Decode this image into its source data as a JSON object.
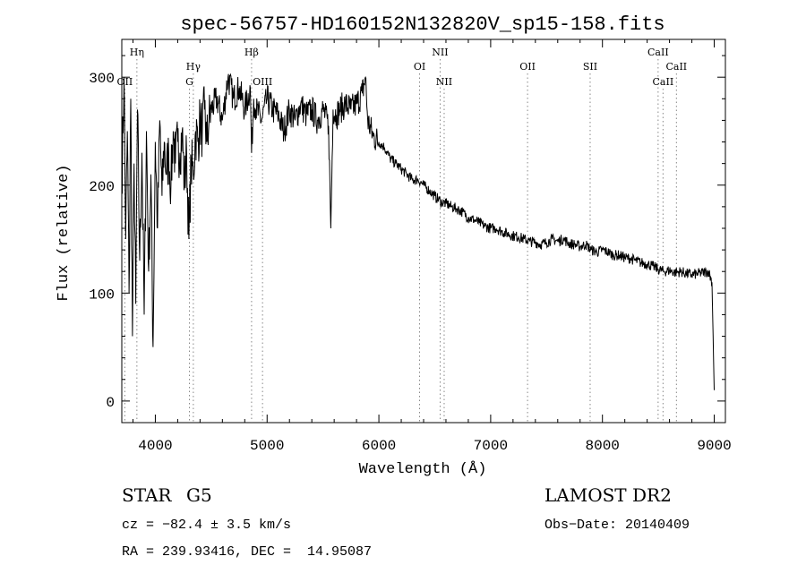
{
  "chart_data": {
    "type": "line",
    "title": "spec-56757-HD160152N132820V_sp15-158.fits",
    "xlabel": "Wavelength (Å)",
    "ylabel": "Flux (relative)",
    "xlim": [
      3700,
      9100
    ],
    "ylim": [
      -20,
      335
    ],
    "xticks": [
      4000,
      5000,
      6000,
      7000,
      8000,
      9000
    ],
    "yticks": [
      0,
      100,
      200,
      300
    ],
    "grid": false,
    "line_color": "#000000",
    "marker_line_color": "#888888",
    "series": [
      {
        "x": [
          3700,
          3720,
          3735,
          3750,
          3765,
          3780,
          3795,
          3810,
          3825,
          3840,
          3860,
          3880,
          3900,
          3920,
          3940,
          3960,
          3980,
          4000,
          4020,
          4040,
          4060,
          4080,
          4100,
          4120,
          4140,
          4160,
          4180,
          4200,
          4220,
          4240,
          4260,
          4280,
          4300,
          4320,
          4340,
          4360,
          4380,
          4400,
          4420,
          4440,
          4460,
          4480,
          4500,
          4550,
          4600,
          4650,
          4700,
          4750,
          4800,
          4850,
          4861,
          4880,
          4900,
          4950,
          5000,
          5050,
          5100,
          5150,
          5200,
          5250,
          5300,
          5350,
          5400,
          5450,
          5500,
          5550,
          5570,
          5590,
          5620,
          5650,
          5700,
          5750,
          5800,
          5850,
          5880,
          5900,
          5950,
          6000,
          6050,
          6100,
          6150,
          6200,
          6250,
          6300,
          6350,
          6400,
          6450,
          6500,
          6550,
          6600,
          6650,
          6700,
          6750,
          6800,
          6850,
          6900,
          6950,
          7000,
          7050,
          7100,
          7150,
          7200,
          7250,
          7300,
          7350,
          7400,
          7450,
          7500,
          7550,
          7600,
          7650,
          7700,
          7750,
          7800,
          7850,
          7900,
          7950,
          8000,
          8050,
          8100,
          8150,
          8200,
          8250,
          8300,
          8350,
          8400,
          8450,
          8500,
          8550,
          8600,
          8650,
          8700,
          8750,
          8800,
          8850,
          8900,
          8950,
          8980,
          8990,
          9000
        ],
        "y": [
          200,
          300,
          150,
          250,
          100,
          280,
          60,
          220,
          90,
          270,
          130,
          230,
          80,
          250,
          120,
          210,
          50,
          240,
          160,
          260,
          190,
          240,
          210,
          230,
          200,
          250,
          220,
          240,
          230,
          250,
          200,
          230,
          150,
          220,
          210,
          250,
          240,
          260,
          250,
          270,
          240,
          260,
          270,
          280,
          260,
          300,
          280,
          290,
          270,
          290,
          230,
          280,
          270,
          260,
          280,
          270,
          265,
          250,
          270,
          260,
          275,
          265,
          270,
          260,
          270,
          255,
          160,
          270,
          265,
          270,
          275,
          270,
          275,
          285,
          300,
          260,
          245,
          240,
          235,
          225,
          220,
          215,
          210,
          205,
          205,
          200,
          195,
          190,
          185,
          183,
          180,
          178,
          175,
          170,
          168,
          165,
          162,
          160,
          160,
          157,
          155,
          153,
          152,
          150,
          148,
          147,
          145,
          147,
          150,
          148,
          150,
          146,
          145,
          143,
          145,
          140,
          138,
          140,
          138,
          135,
          135,
          133,
          132,
          130,
          128,
          127,
          125,
          122,
          120,
          121,
          119,
          120,
          118,
          117,
          118,
          119,
          120,
          110,
          60,
          10
        ]
      }
    ],
    "line_markers": [
      {
        "label": "Hη",
        "x": 3835,
        "row": "top"
      },
      {
        "label": "OII",
        "x": 3727,
        "row": "mid"
      },
      {
        "label": "Hγ",
        "x": 4340,
        "row": "upper"
      },
      {
        "label": "G",
        "x": 4305,
        "row": "lower"
      },
      {
        "label": "Hβ",
        "x": 4861,
        "row": "top"
      },
      {
        "label": "OIII",
        "x": 4959,
        "row": "lower"
      },
      {
        "label": "OI",
        "x": 6364,
        "row": "upper"
      },
      {
        "label": "NII",
        "x": 6548,
        "row": "top"
      },
      {
        "label": "NII",
        "x": 6584,
        "row": "lower"
      },
      {
        "label": "OII",
        "x": 7330,
        "row": "upper"
      },
      {
        "label": "SII",
        "x": 7890,
        "row": "upper"
      },
      {
        "label": "CaII",
        "x": 8498,
        "row": "top"
      },
      {
        "label": "CaII",
        "x": 8542,
        "row": "lower"
      },
      {
        "label": "CaII",
        "x": 8662,
        "row": "upper"
      }
    ]
  },
  "info": {
    "object_class": "STAR",
    "subclass": "G5",
    "survey": "LAMOST DR2",
    "cz": "cz = −82.4 ± 3.5 km/s",
    "obs_date": "Obs−Date: 20140409",
    "radec": "RA = 239.93416, DEC =  14.95087"
  }
}
